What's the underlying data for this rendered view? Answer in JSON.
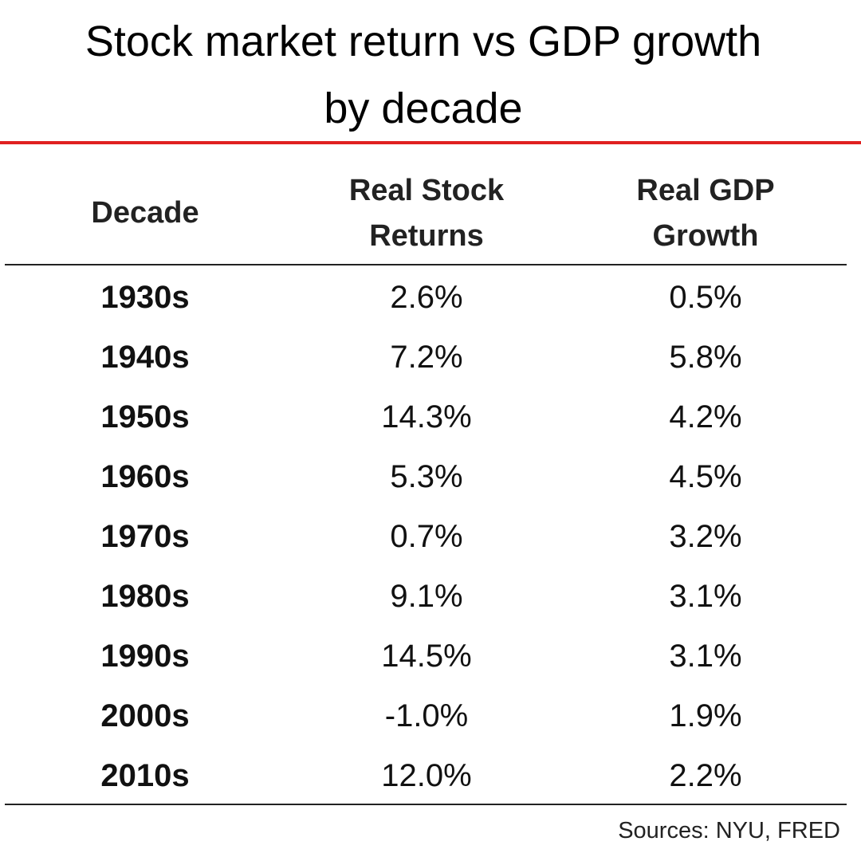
{
  "colors": {
    "accent_rule": "#e02020",
    "text": "#111111"
  },
  "chart_data": {
    "type": "table",
    "title": "Stock market return vs GDP growth by decade",
    "title_lines": [
      "Stock market return vs GDP growth",
      "by decade"
    ],
    "columns": [
      "Decade",
      "Real Stock Returns",
      "Real GDP Growth"
    ],
    "column_header_lines": [
      [
        "Decade"
      ],
      [
        "Real Stock",
        "Returns"
      ],
      [
        "Real GDP",
        "Growth"
      ]
    ],
    "rows": [
      {
        "decade": "1930s",
        "stock": "2.6%",
        "gdp": "0.5%"
      },
      {
        "decade": "1940s",
        "stock": "7.2%",
        "gdp": "5.8%"
      },
      {
        "decade": "1950s",
        "stock": "14.3%",
        "gdp": "4.2%"
      },
      {
        "decade": "1960s",
        "stock": "5.3%",
        "gdp": "4.5%"
      },
      {
        "decade": "1970s",
        "stock": "0.7%",
        "gdp": "3.2%"
      },
      {
        "decade": "1980s",
        "stock": "9.1%",
        "gdp": "3.1%"
      },
      {
        "decade": "1990s",
        "stock": "14.5%",
        "gdp": "3.1%"
      },
      {
        "decade": "2000s",
        "stock": "-1.0%",
        "gdp": "1.9%"
      },
      {
        "decade": "2010s",
        "stock": "12.0%",
        "gdp": "2.2%"
      }
    ],
    "source": "Sources: NYU, FRED"
  }
}
